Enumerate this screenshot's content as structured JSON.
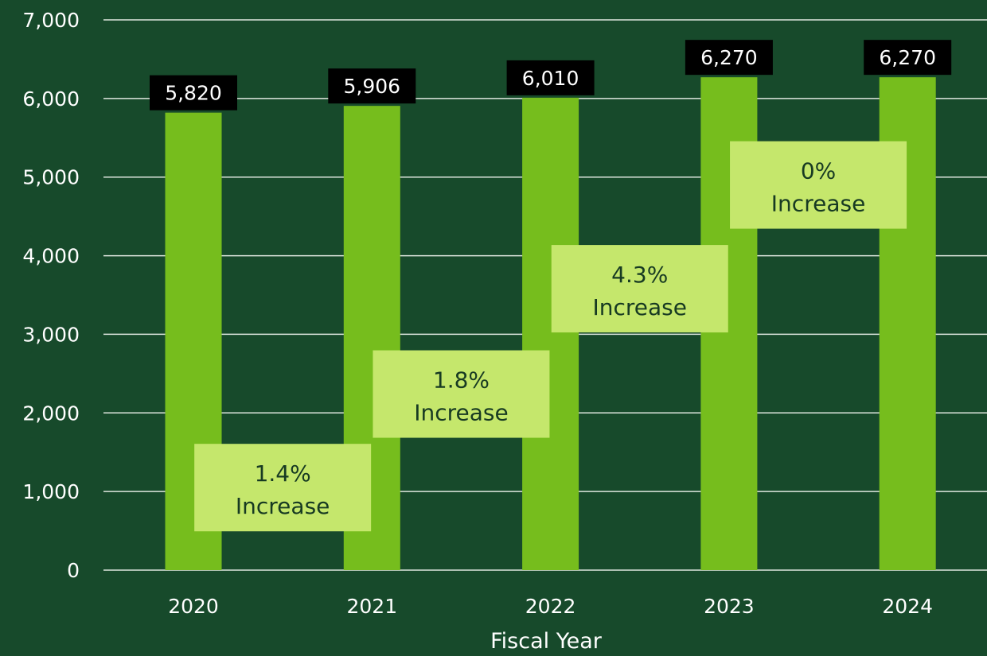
{
  "chart_data": {
    "type": "bar",
    "categories": [
      "2020",
      "2021",
      "2022",
      "2023",
      "2024"
    ],
    "values": [
      5820,
      5906,
      6010,
      6270,
      6270
    ],
    "value_labels": [
      "5,820",
      "5,906",
      "6,010",
      "6,270",
      "6,270"
    ],
    "title": "",
    "xlabel": "Fiscal Year",
    "ylabel": "",
    "ylim": [
      0,
      7000
    ],
    "yticks": [
      0,
      1000,
      2000,
      3000,
      4000,
      5000,
      6000,
      7000
    ],
    "ytick_labels": [
      "0",
      "1,000",
      "2,000",
      "3,000",
      "4,000",
      "5,000",
      "6,000",
      "7,000"
    ],
    "grid": true,
    "legend": "none",
    "annotations": [
      {
        "line1": "1.4%",
        "line2": "Increase",
        "between": [
          "2020",
          "2021"
        ],
        "center_value": 1050
      },
      {
        "line1": "1.8%",
        "line2": "Increase",
        "between": [
          "2021",
          "2022"
        ],
        "center_value": 2240
      },
      {
        "line1": "4.3%",
        "line2": "Increase",
        "between": [
          "2022",
          "2023"
        ],
        "center_value": 3580
      },
      {
        "line1": "0%",
        "line2": "Increase",
        "between": [
          "2023",
          "2024"
        ],
        "center_value": 4900
      }
    ],
    "colors": {
      "background": "#174a2b",
      "bar": "#76bd1d",
      "value_label_bg": "#000000",
      "value_label_text": "#ffffff",
      "annotation_bg": "#c5e76c",
      "annotation_text": "#173a22",
      "grid": "#dfe7df",
      "text": "#ffffff"
    }
  }
}
